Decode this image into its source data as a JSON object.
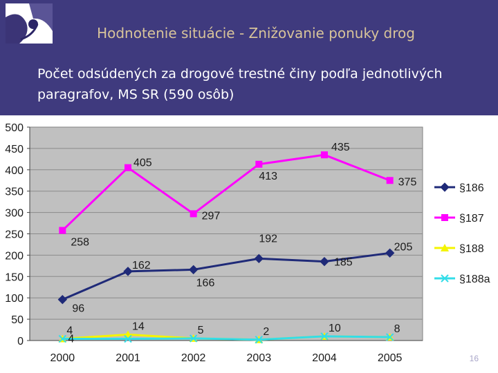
{
  "header": {
    "title": "Hodnotenie situácie - Znižovanie ponuky drog",
    "subtitle_line1": "Počet odsúdených za drogové trestné činy podľa jednotlivých",
    "subtitle_line2": "paragrafov, MS SR (590 osôb)"
  },
  "page_number": "16",
  "colors": {
    "background": "#3f3a7e",
    "title": "#d8c49a",
    "plot_area": "#c0c0c0"
  },
  "chart_data": {
    "type": "line",
    "title": "",
    "xlabel": "",
    "ylabel": "",
    "x": [
      "2000",
      "2001",
      "2002",
      "2003",
      "2004",
      "2005"
    ],
    "ylim": [
      0,
      500
    ],
    "yticks": [
      "0",
      "50",
      "100",
      "150",
      "200",
      "250",
      "300",
      "350",
      "400",
      "450",
      "500"
    ],
    "grid": true,
    "legend_position": "right",
    "series": [
      {
        "name": "§186",
        "values": [
          96,
          162,
          166,
          192,
          185,
          205
        ],
        "color": "#1f2a78",
        "marker": "diamond"
      },
      {
        "name": "§187",
        "values": [
          258,
          405,
          297,
          413,
          435,
          375
        ],
        "color": "#ff00ff",
        "marker": "square"
      },
      {
        "name": "§188",
        "values": [
          4,
          14,
          5,
          2,
          10,
          8
        ],
        "color": "#f4f400",
        "marker": "triangle"
      },
      {
        "name": "§188a",
        "values": [
          4,
          4,
          5,
          2,
          10,
          8
        ],
        "color": "#33dde8",
        "marker": "x"
      }
    ]
  }
}
